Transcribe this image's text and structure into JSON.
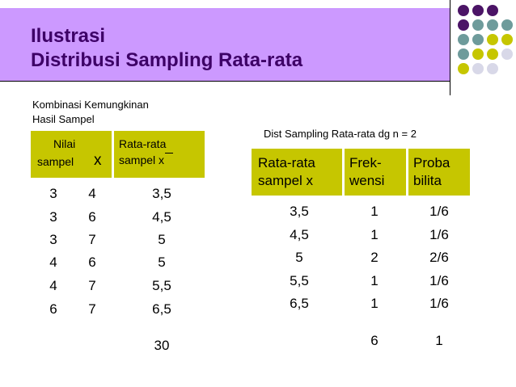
{
  "title": {
    "line1": "Ilustrasi",
    "line2": "Distribusi Sampling Rata-rata"
  },
  "left": {
    "caption1": "Kombinasi Kemungkinan",
    "caption2": "Hasil Sampel",
    "header_nilai_1": "Nilai",
    "header_nilai_2": "sampel",
    "header_x": "x",
    "header_rata_1": "Rata-rata",
    "header_rata_2": "sampel x",
    "rows": [
      {
        "a": "3",
        "b": "4",
        "mean": "3,5"
      },
      {
        "a": "3",
        "b": "6",
        "mean": "4,5"
      },
      {
        "a": "3",
        "b": "7",
        "mean": "5"
      },
      {
        "a": "4",
        "b": "6",
        "mean": "5"
      },
      {
        "a": "4",
        "b": "7",
        "mean": "5,5"
      },
      {
        "a": "6",
        "b": "7",
        "mean": "6,5"
      }
    ],
    "total": "30"
  },
  "right": {
    "caption": "Dist Sampling Rata-rata dg n = 2",
    "h1_1": "Rata-rata",
    "h1_2": "sampel x",
    "h2_1": "Frek-",
    "h2_2": "wensi",
    "h3_1": "Proba",
    "h3_2": "bilita",
    "rows": [
      {
        "mean": "3,5",
        "freq": "1",
        "prob": "1/6"
      },
      {
        "mean": "4,5",
        "freq": "1",
        "prob": "1/6"
      },
      {
        "mean": "5",
        "freq": "2",
        "prob": "2/6"
      },
      {
        "mean": "5,5",
        "freq": "1",
        "prob": "1/6"
      },
      {
        "mean": "6,5",
        "freq": "1",
        "prob": "1/6"
      }
    ],
    "total_freq": "6",
    "total_prob": "1"
  },
  "colors": {
    "band": "#cc99ff",
    "title": "#3d0066",
    "header": "#c6c600",
    "dot_purple": "#4b1466",
    "dot_teal": "#6e9b9b",
    "dot_olive": "#c6c600",
    "dot_grey": "#d8d8e8"
  }
}
